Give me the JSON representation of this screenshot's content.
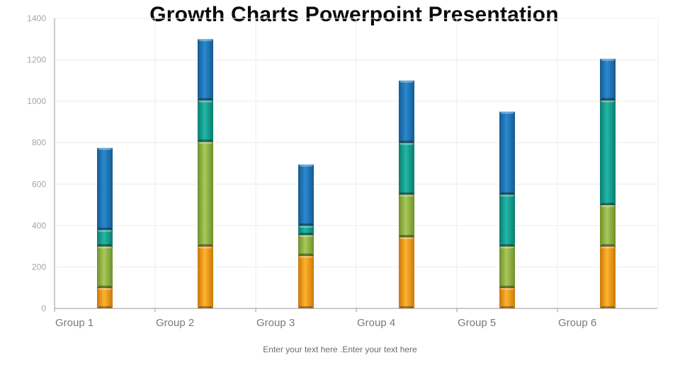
{
  "title": "Growth Charts Powerpoint Presentation",
  "caption": "Enter your text here .Enter your text here",
  "colors": {
    "orange": "#f49c14",
    "green": "#93b745",
    "teal": "#16a394",
    "blue": "#1f78bc",
    "grid": "#ececec",
    "axis": "#9a9a9a"
  },
  "chart_data": {
    "type": "bar",
    "stacked": true,
    "categories": [
      "Group 1",
      "Group 2",
      "Group 3",
      "Group 4",
      "Group 5",
      "Group 6"
    ],
    "series": [
      {
        "color": "orange",
        "values": [
          100,
          300,
          255,
          345,
          100,
          300
        ]
      },
      {
        "color": "green",
        "values": [
          200,
          505,
          100,
          205,
          200,
          200
        ]
      },
      {
        "color": "teal",
        "values": [
          80,
          200,
          45,
          250,
          250,
          505
        ]
      },
      {
        "color": "blue",
        "values": [
          395,
          295,
          295,
          300,
          400,
          200
        ]
      }
    ],
    "ylim": [
      0,
      1400
    ],
    "yticks": [
      "0",
      "200",
      "400",
      "600",
      "800",
      "1000",
      "1200",
      "1400"
    ],
    "grid": true,
    "legend": "none"
  }
}
